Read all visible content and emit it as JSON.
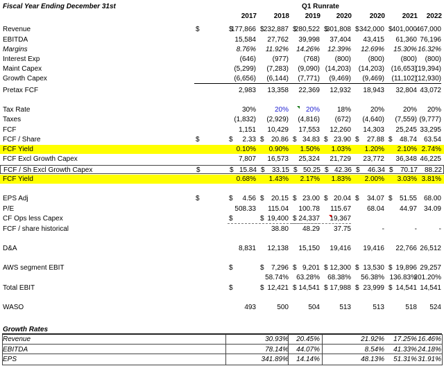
{
  "header": {
    "title": "Fiscal Year Ending December 31st",
    "group_label": "Q1 Runrate",
    "years": [
      "2017",
      "2018",
      "2019",
      "2020",
      "2020",
      "2021",
      "2022"
    ]
  },
  "rows": [
    {
      "label": "Revenue",
      "values": [
        "$|177,866",
        "$|232,887",
        "$|280,522",
        "$|301,808",
        "$|342,000",
        "$|401,000",
        "$|467,000"
      ]
    },
    {
      "label": "EBITDA",
      "values": [
        "15,584",
        "27,762",
        "39,998",
        "37,404",
        "43,415",
        "61,360",
        "76,196"
      ]
    },
    {
      "label": "Margins",
      "values": [
        "8.76%",
        "11.92%",
        "14.26%",
        "12.39%",
        "12.69%",
        "15.30%",
        "16.32%"
      ]
    },
    {
      "label": "Interest Exp",
      "values": [
        "(646)",
        "(977)",
        "(768)",
        "(800)",
        "(800)",
        "(800)",
        "(800)"
      ]
    },
    {
      "label": "Maint Capex",
      "values": [
        "(5,299)",
        "(7,283)",
        "(9,090)",
        "(14,203)",
        "(14,203)",
        "(16,653)",
        "(19,394)"
      ]
    },
    {
      "label": "Growth Capex",
      "values": [
        "(6,656)",
        "(6,144)",
        "(7,771)",
        "(9,469)",
        "(9,469)",
        "(11,102)",
        "(12,930)"
      ]
    },
    {
      "label": "Pretax FCF",
      "values": [
        "2,983",
        "13,358",
        "22,369",
        "12,932",
        "18,943",
        "32,804",
        "43,072"
      ]
    },
    {
      "label": "Tax Rate",
      "values": [
        "30%",
        "20%",
        "20%",
        "18%",
        "20%",
        "20%",
        "20%"
      ]
    },
    {
      "label": "Taxes",
      "values": [
        "(1,832)",
        "(2,929)",
        "(4,816)",
        "(672)",
        "(4,640)",
        "(7,559)",
        "(9,777)"
      ]
    },
    {
      "label": "FCF",
      "values": [
        "1,151",
        "10,429",
        "17,553",
        "12,260",
        "14,303",
        "25,245",
        "33,295"
      ]
    },
    {
      "label": "FCF / Share",
      "values": [
        "$|2.33",
        "$|20.86",
        "$|34.83",
        "$|23.90",
        "$|27.88",
        "$|48.74",
        "$|63.54"
      ]
    },
    {
      "label": "FCF Yield",
      "values": [
        "0.10%",
        "0.90%",
        "1.50%",
        "1.03%",
        "1.20%",
        "2.10%",
        "2.74%"
      ]
    },
    {
      "label": "FCF Excl Growth Capex",
      "values": [
        "7,807",
        "16,573",
        "25,324",
        "21,729",
        "23,772",
        "36,348",
        "46,225"
      ]
    },
    {
      "label": "FCF / Sh Excl Growth Capex",
      "values": [
        "$|15.84",
        "$|33.15",
        "$|50.25",
        "$|42.36",
        "$|46.34",
        "$|70.17",
        "$|88.22"
      ]
    },
    {
      "label": "FCF Yield",
      "values": [
        "0.68%",
        "1.43%",
        "2.17%",
        "1.83%",
        "2.00%",
        "3.03%",
        "3.81%"
      ]
    },
    {
      "label": "EPS Adj",
      "values": [
        "$|4.56",
        "$|20.15",
        "$|23.00",
        "$|20.04",
        "$|34.07",
        "$|51.55",
        "$|68.00"
      ]
    },
    {
      "label": "P/E",
      "values": [
        "508.33",
        "115.04",
        "100.78",
        "115.67",
        "68.04",
        "44.97",
        "34.09"
      ]
    },
    {
      "label": "CF Ops less Capex",
      "values": [
        "",
        "$|19,400",
        "$|24,337",
        "$|19,367",
        "",
        "",
        ""
      ]
    },
    {
      "label": "FCF / share historical",
      "values": [
        "",
        "38.80",
        "48.29",
        "37.75",
        "-",
        "-",
        "-"
      ]
    },
    {
      "label": "D&A",
      "values": [
        "8,831",
        "12,138",
        "15,150",
        "19,416",
        "19,416",
        "22,766",
        "26,512"
      ]
    },
    {
      "label": "AWS segment EBIT",
      "values": [
        "",
        "$|7,296",
        "$|9,201",
        "$|12,300",
        "$|13,530",
        "$|19,896",
        "$|29,257"
      ]
    },
    {
      "label": "",
      "values": [
        "",
        "58.74%",
        "63.28%",
        "68.38%",
        "56.38%",
        "136.83%",
        "201.20%"
      ]
    },
    {
      "label": "Total EBIT",
      "values": [
        "",
        "$|12,421",
        "$|14,541",
        "$|17,988",
        "$|23,999",
        "$|14,541",
        "$|14,541"
      ]
    },
    {
      "label": "WASO",
      "values": [
        "493",
        "500",
        "504",
        "513",
        "513",
        "518",
        "524"
      ]
    }
  ],
  "growth": {
    "title": "Growth Rates",
    "rows": [
      {
        "label": "Revenue",
        "values": [
          "",
          "30.93%",
          "20.45%",
          "",
          "21.92%",
          "17.25%",
          "16.46%"
        ]
      },
      {
        "label": "EBITDA",
        "values": [
          "",
          "78.14%",
          "44.07%",
          "",
          "8.54%",
          "41.33%",
          "24.18%"
        ]
      },
      {
        "label": "EPS",
        "values": [
          "",
          "341.89%",
          "14.14%",
          "",
          "48.13%",
          "51.31%",
          "31.91%"
        ]
      }
    ]
  },
  "colors": {
    "highlight": "#ffff00",
    "blue_input": "#1f1fd1",
    "comment_green": "#1a7a1a",
    "comment_red": "#dd0000"
  }
}
